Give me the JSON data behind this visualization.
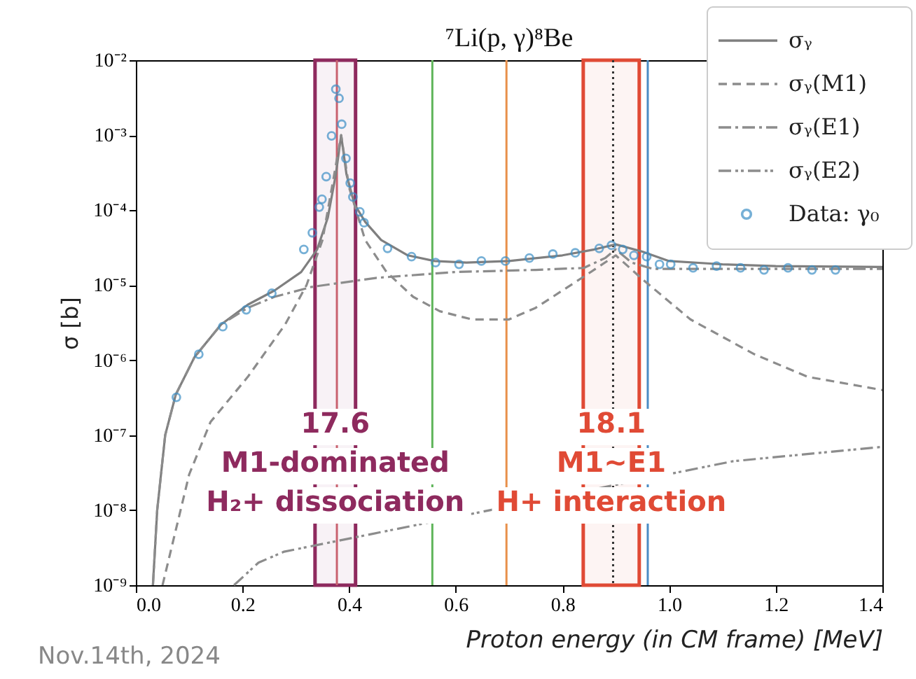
{
  "chart_data": {
    "type": "line",
    "title": "⁷Li(p, γ)⁸Be",
    "xlabel": "Proton energy (in CM frame) [MeV]",
    "ylabel": "σ [b]",
    "xlim": [
      0,
      1.4
    ],
    "xticks": [
      {
        "value": 0,
        "label": "0.0"
      },
      0.2,
      0.4,
      0.6,
      0.8,
      {
        "value": 1,
        "label": "1.0"
      },
      1.2,
      1.4
    ],
    "ylim": [
      1e-09,
      0.01
    ],
    "yticks": [
      {
        "value": 1e-09,
        "label": "10⁻⁹"
      },
      {
        "value": 1e-08,
        "label": "10⁻⁸"
      },
      {
        "value": 1e-07,
        "label": "10⁻⁷"
      },
      {
        "value": 1e-06,
        "label": "10⁻⁶"
      },
      {
        "value": 1e-05,
        "label": "10⁻⁵"
      },
      {
        "value": 0.0001,
        "label": "10⁻⁴"
      },
      {
        "value": 0.001,
        "label": "10⁻³"
      },
      {
        "value": 0.01,
        "label": "10⁻²"
      }
    ],
    "log": "y",
    "legend": "top right",
    "series": [
      {
        "name": "σᵧ",
        "color": "#7f7f7f",
        "line_style": "solid",
        "x": [
          0.032,
          0.04,
          0.055,
          0.075,
          0.11,
          0.16,
          0.21,
          0.26,
          0.31,
          0.34,
          0.36,
          0.375,
          0.385,
          0.395,
          0.41,
          0.43,
          0.46,
          0.51,
          0.56,
          0.62,
          0.7,
          0.8,
          0.86,
          0.9,
          0.95,
          1.0,
          1.1,
          1.2,
          1.4
        ],
        "values": [
          1e-09,
          1e-08,
          1e-07,
          3.5e-07,
          1.1e-06,
          3e-06,
          5.5e-06,
          8.5e-06,
          1.5e-05,
          3e-05,
          8e-05,
          0.0003,
          0.001,
          0.0003,
          0.00012,
          7e-05,
          4e-05,
          2.5e-05,
          2.1e-05,
          2e-05,
          2.1e-05,
          2.5e-05,
          3e-05,
          3.5e-05,
          2.8e-05,
          2.1e-05,
          1.9e-05,
          1.8e-05,
          1.75e-05
        ]
      },
      {
        "name": "σᵧ(M1)",
        "color": "#8c8c8c",
        "line_style": "dashed",
        "x": [
          0.05,
          0.1,
          0.14,
          0.21,
          0.28,
          0.32,
          0.35,
          0.37,
          0.385,
          0.4,
          0.43,
          0.47,
          0.52,
          0.57,
          0.63,
          0.7,
          0.75,
          0.84,
          0.9,
          0.95,
          1.04,
          1.16,
          1.26,
          1.4
        ],
        "values": [
          1e-09,
          3e-08,
          1.5e-07,
          6e-07,
          3e-06,
          1e-05,
          4e-05,
          0.00025,
          0.001,
          0.0002,
          4e-05,
          1.5e-05,
          7e-06,
          4.5e-06,
          3.5e-06,
          3.5e-06,
          5e-06,
          1.3e-05,
          2.5e-05,
          1.2e-05,
          3.5e-06,
          1.2e-06,
          6e-07,
          4e-07
        ]
      },
      {
        "name": "σᵧ(E1)",
        "color": "#8c8c8c",
        "line_style": "dashdot",
        "x": [
          0.032,
          0.04,
          0.055,
          0.075,
          0.11,
          0.16,
          0.21,
          0.26,
          0.33,
          0.45,
          0.6,
          0.75,
          0.84,
          0.88,
          0.9,
          0.93,
          0.97,
          1.2,
          1.4
        ],
        "values": [
          1e-09,
          1e-08,
          1e-07,
          3.5e-07,
          1.1e-06,
          3e-06,
          5e-06,
          7e-06,
          9.5e-06,
          1.25e-05,
          1.5e-05,
          1.6e-05,
          1.7e-05,
          2.3e-05,
          3e-05,
          2e-05,
          1.65e-05,
          1.65e-05,
          1.65e-05
        ]
      },
      {
        "name": "σᵧ(E2)",
        "color": "#8c8c8c",
        "line_style": "dashdotdot",
        "x": [
          0.184,
          0.23,
          0.278,
          1.12,
          1.4
        ],
        "values": [
          1e-09,
          2e-09,
          2.8e-09,
          4.5e-08,
          7e-08
        ]
      },
      {
        "name": "Data: γ₀",
        "type": "scatter",
        "color": "#3d8fc6",
        "marker": "circle",
        "x": [
          0.076,
          0.118,
          0.163,
          0.207,
          0.255,
          0.315,
          0.331,
          0.344,
          0.349,
          0.357,
          0.367,
          0.375,
          0.381,
          0.386,
          0.394,
          0.402,
          0.407,
          0.42,
          0.428,
          0.472,
          0.517,
          0.562,
          0.606,
          0.648,
          0.693,
          0.738,
          0.782,
          0.824,
          0.869,
          0.892,
          0.913,
          0.934,
          0.958,
          0.982,
          1.003,
          1.045,
          1.089,
          1.134,
          1.178,
          1.223,
          1.268,
          1.312
        ],
        "values": [
          3.2e-07,
          1.2e-06,
          2.8e-06,
          4.7e-06,
          7.8e-06,
          3e-05,
          5e-05,
          0.00011,
          0.00014,
          0.00028,
          0.00098,
          0.0041,
          0.0031,
          0.0014,
          0.00049,
          0.00023,
          0.00015,
          9.5e-05,
          6.8e-05,
          3.1e-05,
          2.4e-05,
          2e-05,
          1.9e-05,
          2.1e-05,
          2.1e-05,
          2.3e-05,
          2.6e-05,
          2.7e-05,
          3.1e-05,
          3.4e-05,
          3e-05,
          2.5e-05,
          2.4e-05,
          1.9e-05,
          1.9e-05,
          1.7e-05,
          1.8e-05,
          1.7e-05,
          1.6e-05,
          1.7e-05,
          1.6e-05,
          1.6e-05
        ]
      }
    ],
    "ref_lines": [
      {
        "axis": "x",
        "value": 0.377,
        "color": "#c9626f"
      },
      {
        "axis": "x",
        "value": 0.556,
        "color": "#5fb55a"
      },
      {
        "axis": "x",
        "value": 0.695,
        "color": "#e8904a"
      },
      {
        "axis": "x",
        "value": 0.895,
        "color": "#333333",
        "line_style": "dotted"
      },
      {
        "axis": "x",
        "value": 0.96,
        "color": "#4a8cc4"
      }
    ],
    "bands": [
      {
        "axis": "x",
        "from": 0.336,
        "to": 0.412,
        "color": "#8e2a5e"
      },
      {
        "axis": "x",
        "from": 0.839,
        "to": 0.944,
        "color": "#e04a35"
      }
    ],
    "annotations": [
      "17.6\nM1-dominated\nH₂+ dissociation",
      "18.1\nM1~E1\nH+ interaction",
      "Nov.14th, 2024"
    ]
  }
}
